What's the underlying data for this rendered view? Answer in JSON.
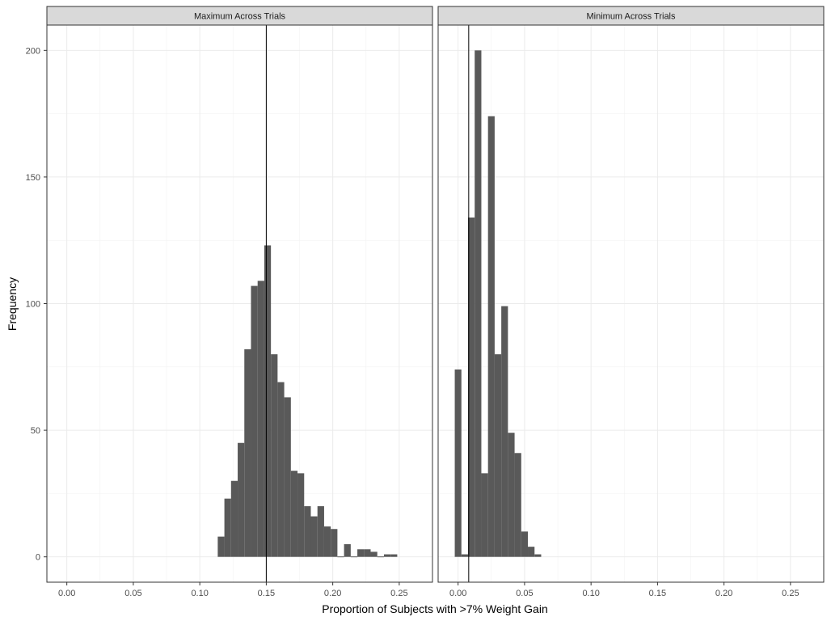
{
  "chart_data": {
    "type": "bar",
    "subtype": "faceted-histogram",
    "xlabel": "Proportion of Subjects with >7% Weight Gain",
    "ylabel": "Frequency",
    "xlim": [
      -0.015,
      0.275
    ],
    "ylim": [
      -10,
      210
    ],
    "x_ticks": [
      0.0,
      0.05,
      0.1,
      0.15,
      0.2,
      0.25
    ],
    "x_tick_labels": [
      "0.00",
      "0.05",
      "0.10",
      "0.15",
      "0.20",
      "0.25"
    ],
    "y_ticks": [
      0,
      50,
      100,
      150,
      200
    ],
    "y_tick_labels": [
      "0",
      "50",
      "100",
      "150",
      "200"
    ],
    "grid": true,
    "bar_color": "#595959",
    "panel_border_color": "#333333",
    "strip_fill": "#d9d9d9",
    "panels": [
      {
        "title": "Maximum Across Trials",
        "vline": 0.15,
        "bins": [
          {
            "x0": 0.1135,
            "x1": 0.1185,
            "count": 8
          },
          {
            "x0": 0.1185,
            "x1": 0.1235,
            "count": 23
          },
          {
            "x0": 0.1235,
            "x1": 0.1285,
            "count": 30
          },
          {
            "x0": 0.1285,
            "x1": 0.1335,
            "count": 45
          },
          {
            "x0": 0.1335,
            "x1": 0.1385,
            "count": 82
          },
          {
            "x0": 0.1385,
            "x1": 0.1435,
            "count": 107
          },
          {
            "x0": 0.1435,
            "x1": 0.1485,
            "count": 109
          },
          {
            "x0": 0.1485,
            "x1": 0.1535,
            "count": 123
          },
          {
            "x0": 0.1535,
            "x1": 0.1585,
            "count": 80
          },
          {
            "x0": 0.1585,
            "x1": 0.1635,
            "count": 69
          },
          {
            "x0": 0.1635,
            "x1": 0.1685,
            "count": 63
          },
          {
            "x0": 0.1685,
            "x1": 0.1735,
            "count": 34
          },
          {
            "x0": 0.1735,
            "x1": 0.1785,
            "count": 33
          },
          {
            "x0": 0.1785,
            "x1": 0.1835,
            "count": 20
          },
          {
            "x0": 0.1835,
            "x1": 0.1885,
            "count": 16
          },
          {
            "x0": 0.1885,
            "x1": 0.1935,
            "count": 20
          },
          {
            "x0": 0.1935,
            "x1": 0.1985,
            "count": 12
          },
          {
            "x0": 0.1985,
            "x1": 0.2035,
            "count": 11
          },
          {
            "x0": 0.2035,
            "x1": 0.2085,
            "count": 0
          },
          {
            "x0": 0.2085,
            "x1": 0.2135,
            "count": 5
          },
          {
            "x0": 0.2135,
            "x1": 0.2185,
            "count": 0
          },
          {
            "x0": 0.2185,
            "x1": 0.2235,
            "count": 3
          },
          {
            "x0": 0.2235,
            "x1": 0.2285,
            "count": 3
          },
          {
            "x0": 0.2285,
            "x1": 0.2335,
            "count": 2
          },
          {
            "x0": 0.2335,
            "x1": 0.2385,
            "count": 0
          },
          {
            "x0": 0.2385,
            "x1": 0.2435,
            "count": 1
          },
          {
            "x0": 0.2435,
            "x1": 0.2485,
            "count": 1
          }
        ]
      },
      {
        "title": "Minimum Across Trials",
        "vline": 0.008,
        "bins": [
          {
            "x0": -0.0025,
            "x1": 0.0025,
            "count": 74
          },
          {
            "x0": 0.0025,
            "x1": 0.0075,
            "count": 1
          },
          {
            "x0": 0.0075,
            "x1": 0.0125,
            "count": 134
          },
          {
            "x0": 0.0125,
            "x1": 0.0175,
            "count": 200
          },
          {
            "x0": 0.0175,
            "x1": 0.0225,
            "count": 33
          },
          {
            "x0": 0.0225,
            "x1": 0.0275,
            "count": 174
          },
          {
            "x0": 0.0275,
            "x1": 0.0325,
            "count": 80
          },
          {
            "x0": 0.0325,
            "x1": 0.0375,
            "count": 99
          },
          {
            "x0": 0.0375,
            "x1": 0.0425,
            "count": 49
          },
          {
            "x0": 0.0425,
            "x1": 0.0475,
            "count": 41
          },
          {
            "x0": 0.0475,
            "x1": 0.0525,
            "count": 10
          },
          {
            "x0": 0.0525,
            "x1": 0.0575,
            "count": 4
          },
          {
            "x0": 0.0575,
            "x1": 0.0625,
            "count": 1
          }
        ]
      }
    ]
  }
}
